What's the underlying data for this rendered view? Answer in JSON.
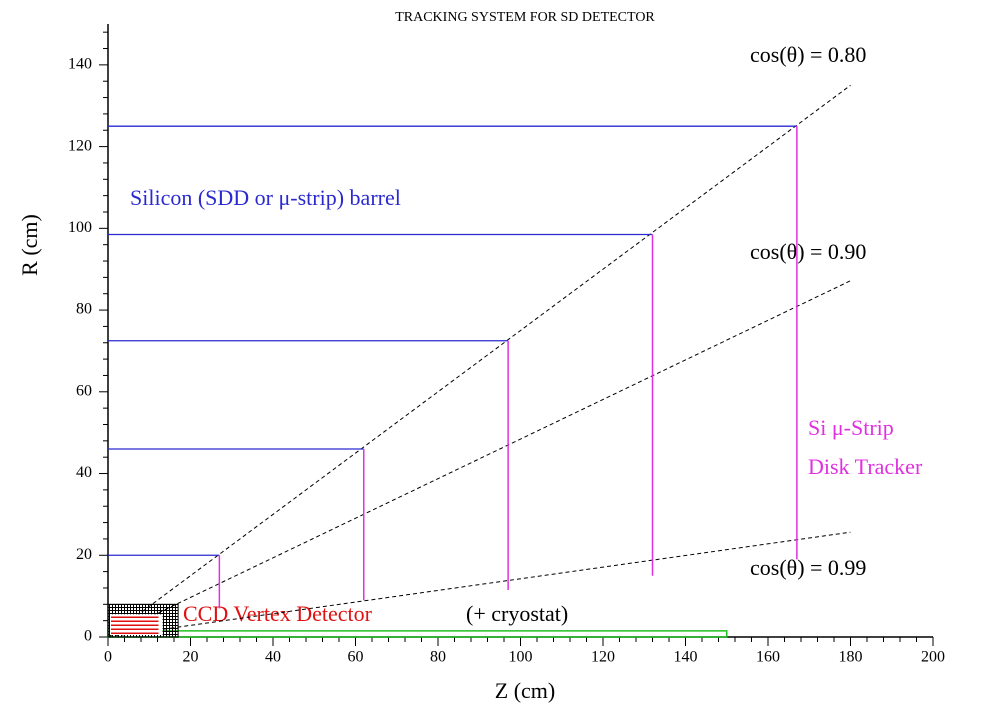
{
  "chart_data": {
    "type": "detector-layout",
    "title": "TRACKING SYSTEM FOR SD DETECTOR",
    "x_label": "Z (cm)",
    "y_label": "R (cm)",
    "xlim": [
      0,
      200
    ],
    "ylim": [
      0,
      150
    ],
    "xticks": [
      0,
      20,
      40,
      60,
      80,
      100,
      120,
      140,
      160,
      180,
      200
    ],
    "yticks": [
      0,
      20,
      40,
      60,
      80,
      100,
      120,
      140
    ],
    "minor_ticks": 4,
    "barrel": {
      "label": "Silicon (SDD or μ-strip) barrel",
      "color": "#2a2ad0",
      "radius": [
        20,
        46,
        72.5,
        98.5,
        125
      ],
      "half_length": [
        27,
        62,
        97,
        132,
        167
      ]
    },
    "disks": {
      "label": [
        "Si μ-Strip",
        "Disk Tracker"
      ],
      "color": "#e030e0",
      "z": [
        27,
        62,
        97,
        132,
        167
      ],
      "r_min": [
        7,
        9,
        11.5,
        15,
        19
      ],
      "r_max": [
        20,
        46,
        72.5,
        98.5,
        125
      ]
    },
    "cones": [
      {
        "label": "cos(θ) = 0.80",
        "cos": 0.8,
        "z_end": 180
      },
      {
        "label": "cos(θ) = 0.90",
        "cos": 0.9,
        "z_end": 180
      },
      {
        "label": "cos(θ) = 0.99",
        "cos": 0.99,
        "z_end": 180
      }
    ],
    "beam_pipe": {
      "color": "#20c020",
      "radius": 1.5,
      "half_length": 150
    },
    "vertex": {
      "label": "CCD Vertex Detector",
      "note": "(+ cryostat)",
      "color": "#e01010",
      "radius": 8,
      "half_length": 17
    }
  }
}
